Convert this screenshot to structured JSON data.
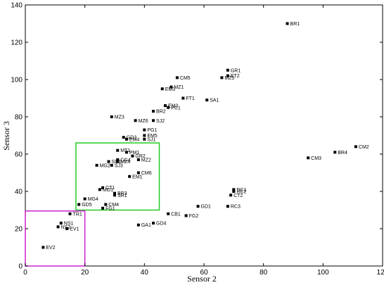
{
  "chart_data": {
    "type": "scatter",
    "title": "",
    "xlabel": "Sensor 2",
    "ylabel": "Sensor 3",
    "xlim": [
      0,
      120
    ],
    "ylim": [
      0,
      140
    ],
    "xticks": [
      0,
      20,
      40,
      60,
      80,
      100,
      120
    ],
    "yticks": [
      0,
      20,
      40,
      60,
      80,
      100,
      120,
      140
    ],
    "grid": false,
    "legend": "none",
    "marker_color": "#000000",
    "points": [
      {
        "label": "BR1",
        "x": 88,
        "y": 130
      },
      {
        "label": "GR1",
        "x": 68,
        "y": 105
      },
      {
        "label": "ET2",
        "x": 68,
        "y": 102
      },
      {
        "label": "MZ5",
        "x": 66,
        "y": 101
      },
      {
        "label": "CM5",
        "x": 51,
        "y": 101
      },
      {
        "label": "MZ1",
        "x": 49,
        "y": 96
      },
      {
        "label": "EM3",
        "x": 46,
        "y": 95
      },
      {
        "label": "FT1",
        "x": 53,
        "y": 90
      },
      {
        "label": "SA1",
        "x": 61,
        "y": 89
      },
      {
        "label": "EM2",
        "x": 47,
        "y": 86
      },
      {
        "label": "PC1",
        "x": 48,
        "y": 85
      },
      {
        "label": "BR2",
        "x": 43,
        "y": 83
      },
      {
        "label": "MZ3",
        "x": 29,
        "y": 80
      },
      {
        "label": "MZ6",
        "x": 37,
        "y": 78
      },
      {
        "label": "SJ2",
        "x": 43,
        "y": 78
      },
      {
        "label": "PG1",
        "x": 40,
        "y": 73
      },
      {
        "label": "EM5",
        "x": 40,
        "y": 70
      },
      {
        "label": "GD3",
        "x": 33,
        "y": 69
      },
      {
        "label": "EM4",
        "x": 34,
        "y": 68
      },
      {
        "label": "SJ1",
        "x": 40,
        "y": 68
      },
      {
        "label": "MT1",
        "x": 31,
        "y": 62
      },
      {
        "label": "PM1",
        "x": 34,
        "y": 61
      },
      {
        "label": "GR2",
        "x": 36,
        "y": 59
      },
      {
        "label": "CG4",
        "x": 31,
        "y": 57
      },
      {
        "label": "MZ2",
        "x": 38,
        "y": 57
      },
      {
        "label": "MZ4",
        "x": 31,
        "y": 56
      },
      {
        "label": "SC1",
        "x": 28,
        "y": 56
      },
      {
        "label": "SJ3",
        "x": 29,
        "y": 54
      },
      {
        "label": "MG2",
        "x": 24,
        "y": 54
      },
      {
        "label": "CM6",
        "x": 38,
        "y": 50
      },
      {
        "label": "EM1",
        "x": 35,
        "y": 48
      },
      {
        "label": "CT1",
        "x": 26,
        "y": 42
      },
      {
        "label": "MG1",
        "x": 25,
        "y": 41
      },
      {
        "label": "BR3",
        "x": 30,
        "y": 39
      },
      {
        "label": "SR1",
        "x": 30,
        "y": 38
      },
      {
        "label": "MG4",
        "x": 20,
        "y": 36
      },
      {
        "label": "GD5",
        "x": 18,
        "y": 33
      },
      {
        "label": "CM4",
        "x": 27,
        "y": 33
      },
      {
        "label": "FG1",
        "x": 26,
        "y": 31
      },
      {
        "label": "TR1",
        "x": 15,
        "y": 28
      },
      {
        "label": "CB1",
        "x": 48,
        "y": 28
      },
      {
        "label": "FG2",
        "x": 54,
        "y": 27
      },
      {
        "label": "GD1",
        "x": 58,
        "y": 32
      },
      {
        "label": "RC3",
        "x": 68,
        "y": 32
      },
      {
        "label": "GA1",
        "x": 38,
        "y": 22
      },
      {
        "label": "GD4",
        "x": 43,
        "y": 23
      },
      {
        "label": "NS1",
        "x": 12,
        "y": 23
      },
      {
        "label": "NS2",
        "x": 11,
        "y": 21
      },
      {
        "label": "EV1",
        "x": 14,
        "y": 20
      },
      {
        "label": "EV2",
        "x": 6,
        "y": 10
      },
      {
        "label": "RC1",
        "x": 70,
        "y": 41
      },
      {
        "label": "RC2",
        "x": 70,
        "y": 40
      },
      {
        "label": "CT2",
        "x": 69,
        "y": 38
      },
      {
        "label": "CM3",
        "x": 95,
        "y": 58
      },
      {
        "label": "BR4",
        "x": 104,
        "y": 61
      },
      {
        "label": "CM2",
        "x": 111,
        "y": 64
      }
    ],
    "regions": [
      {
        "name": "green-box",
        "color": "#22cc22",
        "x0": 17,
        "x1": 45,
        "y0": 30,
        "y1": 66
      },
      {
        "name": "magenta-box",
        "color": "#cc22cc",
        "x0": 0,
        "x1": 20,
        "y0": 0,
        "y1": 29.5
      }
    ]
  }
}
